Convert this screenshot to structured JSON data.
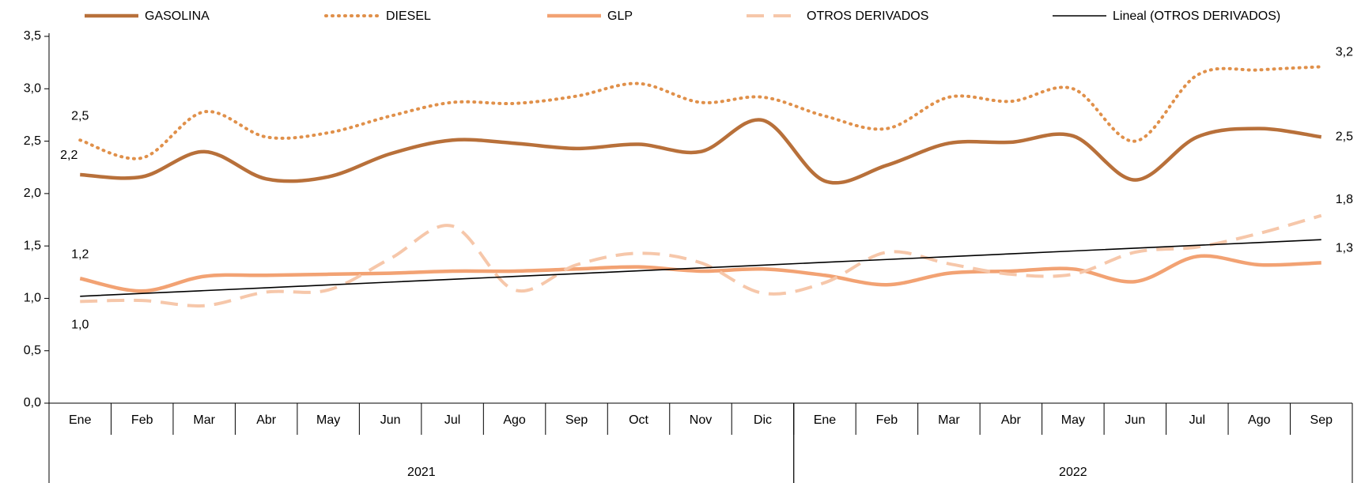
{
  "chart_data": {
    "type": "line",
    "categories": [
      "Ene",
      "Feb",
      "Mar",
      "Abr",
      "May",
      "Jun",
      "Jul",
      "Ago",
      "Sep",
      "Oct",
      "Nov",
      "Dic",
      "Ene",
      "Feb",
      "Mar",
      "Abr",
      "May",
      "Jun",
      "Jul",
      "Ago",
      "Sep"
    ],
    "groups": [
      {
        "label": "2021",
        "count": 12
      },
      {
        "label": "2022",
        "count": 9
      }
    ],
    "ylim": [
      0,
      3.5
    ],
    "yticks": [
      {
        "value": 0,
        "label": "0,0"
      },
      {
        "value": 0.5,
        "label": "0,5"
      },
      {
        "value": 1,
        "label": "1,0"
      },
      {
        "value": 1.5,
        "label": "1,5"
      },
      {
        "value": 2,
        "label": "2,0"
      },
      {
        "value": 2.5,
        "label": "2,5"
      },
      {
        "value": 3,
        "label": "3,0"
      },
      {
        "value": 3.5,
        "label": "3,5"
      }
    ],
    "grid": false,
    "legend": "top",
    "series": [
      {
        "name": "GASOLINA",
        "color": "#b8703a",
        "style": "solid",
        "smooth": true,
        "values": [
          2.18,
          2.16,
          2.4,
          2.14,
          2.16,
          2.38,
          2.51,
          2.48,
          2.43,
          2.47,
          2.4,
          2.7,
          2.12,
          2.27,
          2.48,
          2.49,
          2.55,
          2.13,
          2.54,
          2.62,
          2.54
        ],
        "value_labels": [
          "2,2",
          null,
          null,
          null,
          null,
          null,
          null,
          null,
          null,
          null,
          null,
          null,
          null,
          null,
          null,
          null,
          null,
          null,
          null,
          null,
          "2,5"
        ]
      },
      {
        "name": "DIESEL",
        "color": "#e0904a",
        "style": "dotted",
        "smooth": true,
        "values": [
          2.51,
          2.34,
          2.78,
          2.54,
          2.58,
          2.74,
          2.87,
          2.86,
          2.93,
          3.05,
          2.87,
          2.92,
          2.74,
          2.62,
          2.92,
          2.88,
          3.0,
          2.5,
          3.13,
          3.18,
          3.21
        ],
        "value_labels": [
          "2,5",
          null,
          null,
          null,
          null,
          null,
          null,
          null,
          null,
          null,
          null,
          null,
          null,
          null,
          null,
          null,
          null,
          null,
          null,
          null,
          "3,2"
        ]
      },
      {
        "name": "GLP",
        "color": "#f2a273",
        "style": "solid",
        "smooth": true,
        "values": [
          1.19,
          1.07,
          1.21,
          1.22,
          1.23,
          1.24,
          1.26,
          1.26,
          1.28,
          1.3,
          1.26,
          1.28,
          1.22,
          1.13,
          1.24,
          1.26,
          1.28,
          1.16,
          1.4,
          1.32,
          1.34
        ],
        "value_labels": [
          "1,2",
          null,
          null,
          null,
          null,
          null,
          null,
          null,
          null,
          null,
          null,
          null,
          null,
          null,
          null,
          null,
          null,
          null,
          null,
          null,
          "1,3"
        ]
      },
      {
        "name": "OTROS DERIVADOS",
        "color": "#f6c7aa",
        "style": "dashed",
        "smooth": true,
        "values": [
          0.97,
          0.98,
          0.93,
          1.06,
          1.08,
          1.38,
          1.69,
          1.08,
          1.32,
          1.43,
          1.34,
          1.05,
          1.15,
          1.44,
          1.33,
          1.23,
          1.23,
          1.44,
          1.49,
          1.62,
          1.79
        ],
        "value_labels": [
          "1,0",
          null,
          null,
          null,
          null,
          null,
          null,
          null,
          null,
          null,
          null,
          null,
          null,
          null,
          null,
          null,
          null,
          null,
          null,
          null,
          "1,8"
        ]
      },
      {
        "name": "Lineal (OTROS DERIVADOS)",
        "color": "#000000",
        "style": "thin",
        "smooth": false,
        "values": [
          1.02,
          1.047,
          1.074,
          1.101,
          1.128,
          1.155,
          1.182,
          1.209,
          1.236,
          1.263,
          1.29,
          1.317,
          1.344,
          1.371,
          1.398,
          1.425,
          1.452,
          1.479,
          1.506,
          1.533,
          1.56
        ]
      }
    ]
  }
}
